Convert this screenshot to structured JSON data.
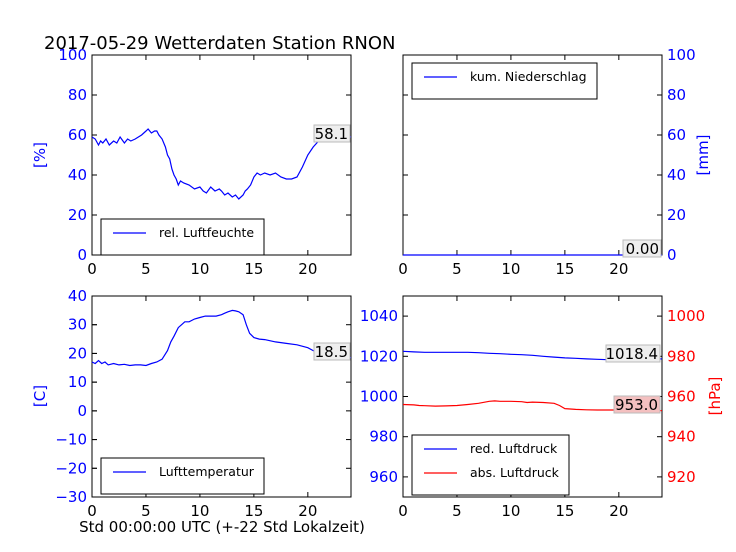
{
  "title": "2017-05-29 Wetterdaten Station RNON",
  "xlabel": "Std 00:00:00 UTC (+-22 Std Lokalzeit)",
  "colors": {
    "blue": "#0000ff",
    "red": "#ff0000",
    "black": "#000000",
    "readout_bg_gray": "#eeeeee",
    "readout_bg_red": "#f4c0c0"
  },
  "chart_data": [
    {
      "type": "line",
      "panel": "top-left",
      "ylabel": "[%]",
      "xlim": [
        0,
        24
      ],
      "ylim": [
        0,
        100
      ],
      "xticks": [
        "0",
        "5",
        "10",
        "15",
        "20"
      ],
      "yticks": [
        "0",
        "20",
        "40",
        "60",
        "80",
        "100"
      ],
      "legend": {
        "position": "bottom-left",
        "entries": [
          "rel. Luftfeuchte"
        ]
      },
      "readout": "58.1",
      "series": [
        {
          "name": "rel. Luftfeuchte",
          "color": "#0000ff",
          "x": [
            0,
            0.3,
            0.6,
            0.8,
            1,
            1.3,
            1.6,
            2,
            2.3,
            2.6,
            3,
            3.3,
            3.6,
            4,
            4.3,
            4.6,
            5,
            5.2,
            5.5,
            5.8,
            6,
            6.2,
            6.5,
            6.8,
            7,
            7.2,
            7.4,
            7.6,
            7.8,
            8,
            8.2,
            8.5,
            9,
            9.5,
            10,
            10.3,
            10.6,
            11,
            11.4,
            11.8,
            12,
            12.3,
            12.6,
            13,
            13.3,
            13.6,
            14,
            14.2,
            14.4,
            14.7,
            15,
            15.3,
            15.6,
            16,
            16.5,
            17,
            17.5,
            18,
            18.5,
            19,
            19.5,
            20,
            20.5,
            21,
            21.5,
            22,
            22.5,
            23,
            24
          ],
          "y": [
            59,
            58,
            55,
            57,
            56,
            58,
            55,
            57,
            56,
            59,
            56,
            58,
            57,
            58,
            59,
            60,
            62,
            63,
            61,
            62,
            62,
            60,
            58,
            54,
            50,
            48,
            43,
            40,
            38,
            35,
            37,
            36,
            35,
            33,
            34,
            32,
            31,
            34,
            32,
            33,
            32,
            30,
            31,
            29,
            30,
            28,
            30,
            32,
            33,
            35,
            39,
            41,
            40,
            41,
            40,
            41,
            39,
            38,
            38,
            39,
            44,
            50,
            54,
            57,
            58,
            59,
            60,
            60,
            59
          ]
        }
      ]
    },
    {
      "type": "line",
      "panel": "top-right",
      "ylabel": "[mm]",
      "xlim": [
        0,
        24
      ],
      "ylim": [
        0,
        100
      ],
      "xticks": [
        "0",
        "5",
        "10",
        "15",
        "20"
      ],
      "yticks": [
        "0",
        "20",
        "40",
        "60",
        "80",
        "100"
      ],
      "legend": {
        "position": "top-left",
        "entries": [
          "kum. Niederschlag"
        ]
      },
      "readout": "0.00",
      "series": [
        {
          "name": "kum. Niederschlag",
          "color": "#0000ff",
          "x": [
            0,
            24
          ],
          "y": [
            0,
            0
          ]
        }
      ]
    },
    {
      "type": "line",
      "panel": "bottom-left",
      "ylabel": "[C]",
      "xlim": [
        0,
        24
      ],
      "ylim": [
        -30,
        40
      ],
      "xticks": [
        "0",
        "5",
        "10",
        "15",
        "20"
      ],
      "yticks": [
        "−30",
        "−20",
        "−10",
        "0",
        "10",
        "20",
        "30",
        "40"
      ],
      "legend": {
        "position": "bottom-left",
        "entries": [
          "Lufttemperatur"
        ]
      },
      "readout": "18.5",
      "series": [
        {
          "name": "Lufttemperatur",
          "color": "#0000ff",
          "x": [
            0,
            0.3,
            0.6,
            0.9,
            1.2,
            1.5,
            2,
            2.5,
            3,
            3.5,
            4,
            4.5,
            5,
            5.5,
            6,
            6.5,
            7,
            7.3,
            7.6,
            8,
            8.3,
            8.6,
            9,
            9.5,
            10,
            10.5,
            11,
            11.5,
            12,
            12.3,
            12.6,
            13,
            13.3,
            13.6,
            14,
            14.3,
            14.6,
            15,
            15.5,
            16,
            17,
            18,
            19,
            20,
            20.5,
            21,
            22,
            23,
            24
          ],
          "y": [
            17,
            16.5,
            17.5,
            16.5,
            17,
            16,
            16.5,
            16,
            16.2,
            15.8,
            16,
            16,
            15.8,
            16.5,
            17,
            18,
            21,
            24,
            26,
            29,
            30,
            31,
            31,
            32,
            32.5,
            33,
            33,
            33,
            33.5,
            34,
            34.5,
            35,
            34.8,
            34.5,
            33.5,
            30,
            27,
            25.5,
            25,
            24.8,
            24,
            23.5,
            23,
            22,
            21,
            20,
            19.5,
            19,
            18.5
          ]
        }
      ]
    },
    {
      "type": "line",
      "panel": "bottom-right",
      "ylabel": "[hPa]",
      "xlim": [
        0,
        24
      ],
      "ylim_left": [
        950,
        1050
      ],
      "ylim_right": [
        910,
        1010
      ],
      "xticks": [
        "0",
        "5",
        "10",
        "15",
        "20"
      ],
      "yticks_left": [
        "960",
        "980",
        "1000",
        "1020",
        "1040"
      ],
      "yticks_right": [
        "920",
        "940",
        "960",
        "980",
        "1000"
      ],
      "legend": {
        "position": "bottom-left",
        "entries": [
          "red. Luftdruck",
          "abs. Luftdruck"
        ]
      },
      "readouts": [
        "1018.4",
        "953.0"
      ],
      "series": [
        {
          "name": "red. Luftdruck",
          "axis": "left",
          "color": "#0000ff",
          "x": [
            0,
            1,
            2,
            3,
            4,
            5,
            6,
            7,
            8,
            9,
            10,
            11,
            12,
            13,
            14,
            15,
            16,
            17,
            18,
            19,
            20,
            21,
            22,
            23,
            24
          ],
          "y": [
            1022.5,
            1022.2,
            1022,
            1022,
            1022,
            1022,
            1022,
            1021.8,
            1021.5,
            1021.3,
            1021,
            1020.8,
            1020.5,
            1020,
            1019.6,
            1019.2,
            1019,
            1018.7,
            1018.5,
            1018.3,
            1018.4,
            1018.5,
            1018.6,
            1018.6,
            1018.7
          ]
        },
        {
          "name": "abs. Luftdruck",
          "axis": "right",
          "color": "#ff0000",
          "x": [
            0,
            1,
            1.5,
            2,
            3,
            4,
            5,
            6,
            7,
            8,
            8.5,
            9,
            10,
            11,
            11.5,
            12,
            13,
            14,
            14.5,
            15,
            16,
            17,
            18,
            19,
            20,
            21,
            22,
            23,
            24
          ],
          "y": [
            956,
            955.8,
            955.5,
            955.4,
            955.2,
            955.3,
            955.5,
            956,
            956.6,
            957.6,
            957.8,
            957.6,
            957.6,
            957.4,
            957,
            957.2,
            957,
            956.6,
            955.5,
            954,
            953.6,
            953.4,
            953.3,
            953.3,
            953.3,
            953.2,
            953.1,
            953.1,
            953.0
          ]
        }
      ]
    }
  ]
}
